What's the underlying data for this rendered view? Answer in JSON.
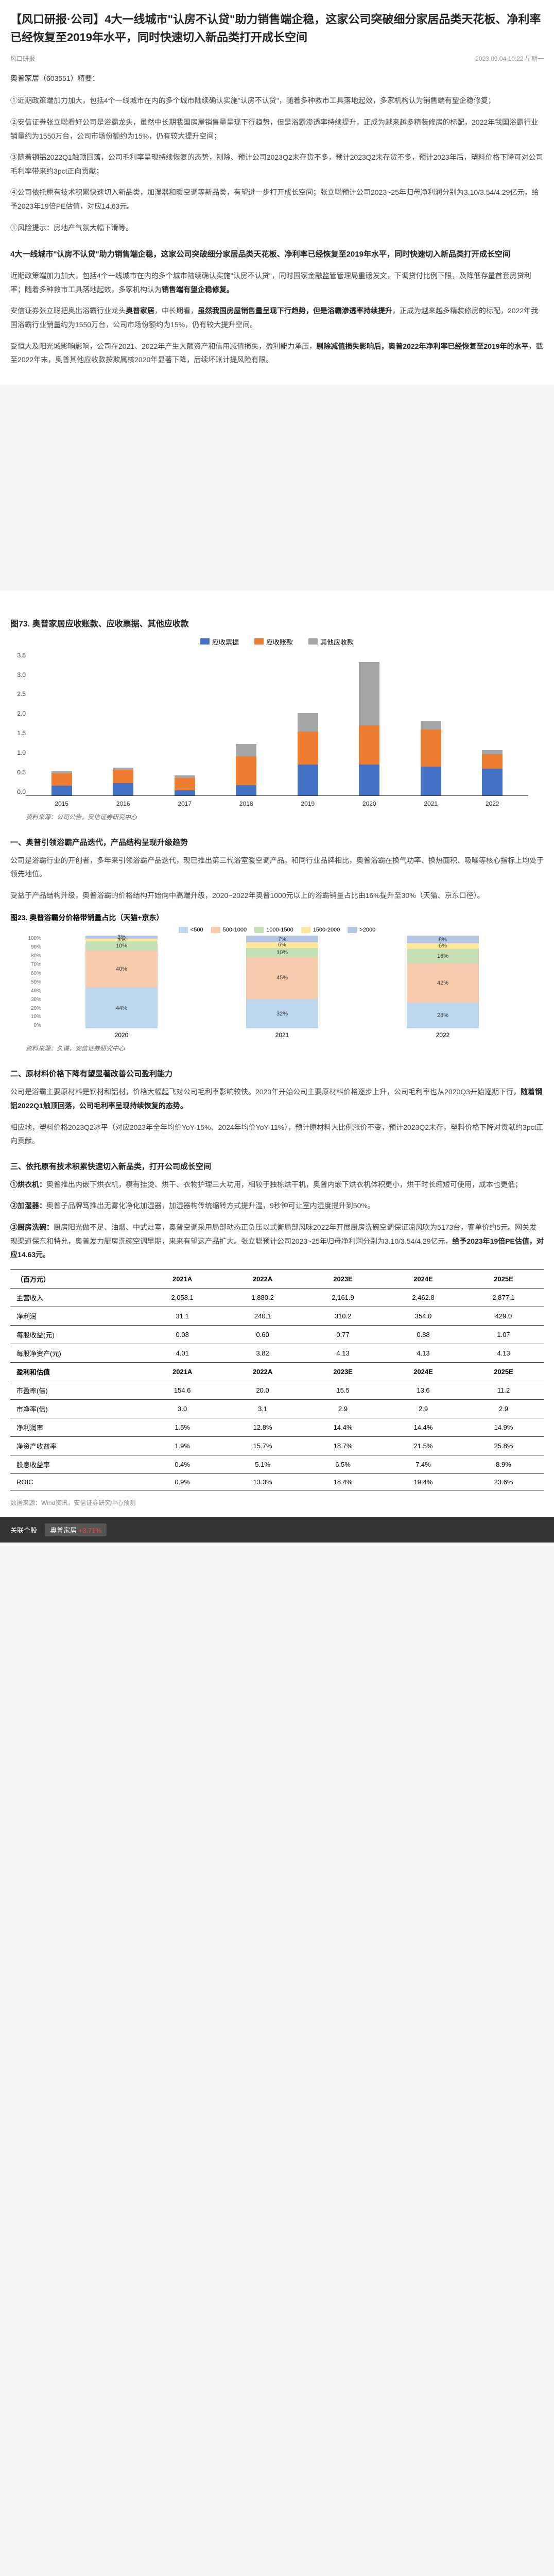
{
  "header": {
    "title": "【风口研报·公司】4大一线城市\"认房不认贷\"助力销售端企稳，这家公司突破细分家居品类天花板、净利率已经恢复至2019年水平，同时快速切入新品类打开成长空间",
    "source_link": "风口研报",
    "date": "2023.09.04 10:22",
    "weekday": "星期一"
  },
  "subtitle": "奥普家居（603551）精要：",
  "intro_points": [
    "①近期政策端加力加大，包括4个一线城市在内的多个城市陆续确认实施\"认房不认贷\"，随着多种救市工具落地起效，多家机构认为销售端有望企稳修复；",
    "②安信证券张立聪看好公司是浴霸龙头，虽然中长期我国房屋销售量呈现下行趋势，但是浴霸渗透率持续提升，正成为越来越多精装修房的标配，2022年我国浴霸行业销量约为1550万台，公司市场份额约为15%，仍有较大提升空间；",
    "③随着钢铝2022Q1触顶回落，公司毛利率呈现持续恢复的态势，刨除、预计公司2023Q2末存货不多，预计2023Q2末存货不多，预计2023年后，塑料价格下降可对公司毛利率带来约3pct正向贡献；",
    "④公司依托原有技术积累快速切入新品类，加湿器和暖空调等新品类，有望进一步打开成长空间；张立聪预计公司2023~25年归母净利润分别为3.10/3.54/4.29亿元，给予2023年19倍PE估值，对应14.63元。"
  ],
  "risk_note": "①风险提示：房地产气氛大幅下滑等。",
  "bold_heading_1": "4大一线城市\"认房不认贷\"助力销售端企稳，这家公司突破细分家居品类天花板、净利率已经恢复至2019年水平，同时快速切入新品类打开成长空间",
  "para_1": "近期政策端加力加大，包括4个一线城市在内的多个城市陆续确认实施\"认房不认贷\"，同时国家金融监管管理局重磅发文，下调贷付比例下限，及降低存量首套房贷利率；随着多种救市工具落地起效，多家机构认为",
  "para_1_bold": "销售端有望企稳修复。",
  "para_2_pre": "安信证券张立聪把奥出浴霸行业龙头",
  "para_2_bold1": "奥普家居",
  "para_2_mid": "，中长期看，",
  "para_2_bold2": "虽然我国房屋销售量呈现下行趋势，但是浴霸渗透率持续提升",
  "para_2_post": "，正成为越来越多精装修房的标配，2022年我国浴霸行业销量约为1550万台，公司市场份额约为15%，仍有较大提升空间。",
  "para_3_pre": "受恒大及阳光城影响影响，公司在2021、2022年产生大额资产和信用减值损失，盈利能力承压，",
  "para_3_bold1": "剔除减值损失影响后，奥普2022年净利率已经恢复至2019年的水平",
  "para_3_mid": "，截至2022年末，奥普其他应收款按欺属核2020年显著下降，后续坏账计提风险有限。",
  "chart1": {
    "title": "图73. 奥普家居应收账款、应收票据、其他应收款",
    "legend": [
      {
        "label": "应收票据",
        "color": "#4472c4"
      },
      {
        "label": "应收账款",
        "color": "#ed7d31"
      },
      {
        "label": "其他应收款",
        "color": "#a5a5a5"
      }
    ],
    "y_ticks": [
      "3.5",
      "3.0",
      "2.5",
      "2.0",
      "1.5",
      "1.0",
      "0.5",
      "0.0"
    ],
    "y_max": 3.5,
    "years": [
      "2015",
      "2016",
      "2017",
      "2018",
      "2019",
      "2020",
      "2021",
      "2022"
    ],
    "data": [
      {
        "sp": 0.24,
        "sz": 0.3,
        "qt": 0.05
      },
      {
        "sp": 0.3,
        "sz": 0.32,
        "qt": 0.06
      },
      {
        "sp": 0.12,
        "sz": 0.3,
        "qt": 0.07
      },
      {
        "sp": 0.25,
        "sz": 0.7,
        "qt": 0.3
      },
      {
        "sp": 0.75,
        "sz": 0.8,
        "qt": 0.45
      },
      {
        "sp": 0.75,
        "sz": 0.95,
        "qt": 1.55
      },
      {
        "sp": 0.7,
        "sz": 0.9,
        "qt": 0.2
      },
      {
        "sp": 0.65,
        "sz": 0.35,
        "qt": 0.1
      }
    ],
    "source": "资料来源：公司公告，安信证券研究中心"
  },
  "sec1_title": "一、奥普引领浴霸产品迭代，产品结构呈现升级趋势",
  "sec1_p1": "公司是浴霸行业的开创者，多年来引领浴霸产品迭代，现已推出第三代浴室暖空调产品。和同行业品牌相比，奥普浴霸在换气功率、换热面积、吸噪等核心指标上均处于领先地位。",
  "sec1_p2": "受益于产品结构升级，奥普浴霸的价格结构开始向中高端升级，2020~2022年奥普1000元以上的浴霸销量占比由16%提升至30%（天猫、京东口径）。",
  "chart2": {
    "title": "图23. 奥普浴霸分价格带销量占比（天猫+京东）",
    "legend": [
      {
        "label": "<500",
        "color": "#bdd7ee"
      },
      {
        "label": "500-1000",
        "color": "#f8cbad"
      },
      {
        "label": "1000-1500",
        "color": "#c5e0b4"
      },
      {
        "label": "1500-2000",
        "color": "#ffe699"
      },
      {
        "label": ">2000",
        "color": "#b4c7e7"
      }
    ],
    "y_ticks": [
      "100%",
      "90%",
      "80%",
      "70%",
      "60%",
      "50%",
      "40%",
      "30%",
      "20%",
      "10%",
      "0%"
    ],
    "years": [
      "2020",
      "2021",
      "2022"
    ],
    "data": [
      [
        {
          "v": 44,
          "c": "#bdd7ee"
        },
        {
          "v": 40,
          "c": "#f8cbad"
        },
        {
          "v": 10,
          "c": "#c5e0b4"
        },
        {
          "v": 3,
          "c": "#ffe699"
        },
        {
          "v": 3,
          "c": "#b4c7e7"
        }
      ],
      [
        {
          "v": 32,
          "c": "#bdd7ee"
        },
        {
          "v": 45,
          "c": "#f8cbad"
        },
        {
          "v": 10,
          "c": "#c5e0b4"
        },
        {
          "v": 6,
          "c": "#ffe699"
        },
        {
          "v": 7,
          "c": "#b4c7e7"
        }
      ],
      [
        {
          "v": 28,
          "c": "#bdd7ee"
        },
        {
          "v": 42,
          "c": "#f8cbad"
        },
        {
          "v": 16,
          "c": "#c5e0b4"
        },
        {
          "v": 6,
          "c": "#ffe699"
        },
        {
          "v": 8,
          "c": "#b4c7e7"
        }
      ]
    ],
    "source": "资料来源：久谦，安信证券研究中心"
  },
  "sec2_title": "二、原材料价格下降有望显著改善公司盈利能力",
  "sec2_p1_pre": "公司是浴霸主要原材料是钢材和铝材，价格大幅起飞对公司毛利率影响较快。2020年开始公司主要原材料价格逐步上升，公司毛利率也从2020Q3开始逐期下行，",
  "sec2_p1_bold": "随着钢铝2022Q1触顶回落，公司毛利率呈现持续恢复的态势。",
  "sec2_p2": "相应地，塑料价格2023Q2冰平（对应2023年全年均价YoY-15%、2024年均价YoY-11%），预计原材料大比例涨价不变，预计2023Q2末存，塑料价格下降对贡献约3pct正向贡献。",
  "sec3_title": "三、依托原有技术积累快速切入新品类，打开公司成长空间",
  "sec3_p1_bold": "①烘衣机：",
  "sec3_p1": "奥普推出内嵌下烘衣机，模有挂烫、烘干、衣物护理三大功用，相较于独栋烘干机，奥普内嵌下烘衣机体积更小，烘干时长缩短可使用，成本也更低；",
  "sec3_p2_bold": "②加湿器：",
  "sec3_p2": "奥普子品牌笃推出无雾化净化加湿器，加湿器构传统缩转方式提升湿，9秒钟可让室内湿度提升到50%。",
  "sec3_p3_bold": "③厨房洗碗：",
  "sec3_p3": "厨房阳光做不足、油烟、中式灶室，奥普空调采用局部动态正负压以式衡局部风味2022年开展厨房洗碗空调保证凉风吹为5173台，客单价约5元。网关发现渠道保东和特允，奥普发力厨房洗碗空调早期，来来有望这产品扩大。张立聪预计公司2023~25年归母净利润分别为3.10/3.54/4.29亿元，",
  "sec3_p3_bold2": "给予2023年19倍PE估值，对应14.63元。",
  "table": {
    "unit": "（百万元）",
    "headers": [
      "",
      "2021A",
      "2022A",
      "2023E",
      "2024E",
      "2025E"
    ],
    "rows_top": [
      [
        "主营收入",
        "2,058.1",
        "1,880.2",
        "2,161.9",
        "2,462.8",
        "2,877.1"
      ],
      [
        "净利润",
        "31.1",
        "240.1",
        "310.2",
        "354.0",
        "429.0"
      ],
      [
        "每股收益(元)",
        "0.08",
        "0.60",
        "0.77",
        "0.88",
        "1.07"
      ],
      [
        "每股净资产(元)",
        "4.01",
        "3.82",
        "4.13",
        "4.13",
        "4.13"
      ]
    ],
    "headers2": [
      "盈利和估值",
      "2021A",
      "2022A",
      "2023E",
      "2024E",
      "2025E"
    ],
    "rows_bot": [
      [
        "市盈率(倍)",
        "154.6",
        "20.0",
        "15.5",
        "13.6",
        "11.2"
      ],
      [
        "市净率(倍)",
        "3.0",
        "3.1",
        "2.9",
        "2.9",
        "2.9"
      ],
      [
        "净利润率",
        "1.5%",
        "12.8%",
        "14.4%",
        "14.4%",
        "14.9%"
      ],
      [
        "净资产收益率",
        "1.9%",
        "15.7%",
        "18.7%",
        "21.5%",
        "25.8%"
      ],
      [
        "股息收益率",
        "0.4%",
        "5.1%",
        "6.5%",
        "7.4%",
        "8.9%"
      ],
      [
        "ROIC",
        "0.9%",
        "13.3%",
        "18.4%",
        "19.4%",
        "23.6%"
      ]
    ],
    "source": "数据来源：Wind资讯，安信证券研究中心预测"
  },
  "footer": {
    "section_label": "关联个股",
    "stock_name": "奥普家居",
    "pct": "+3.71%"
  }
}
